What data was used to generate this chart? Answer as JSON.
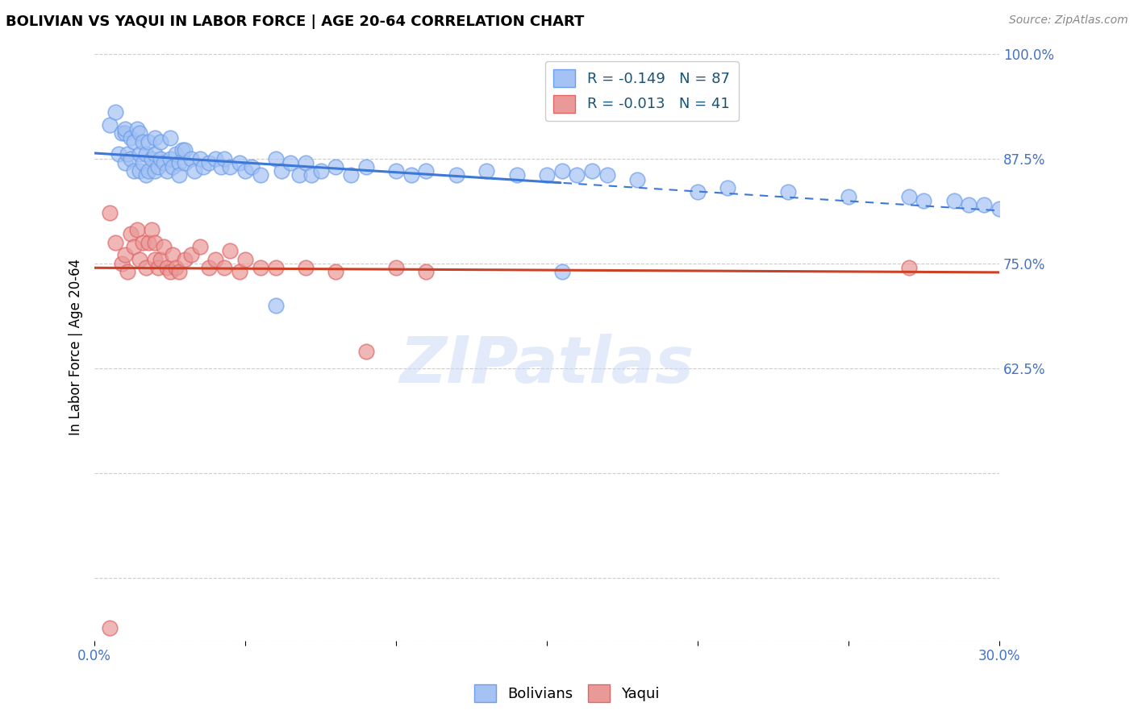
{
  "title": "BOLIVIAN VS YAQUI IN LABOR FORCE | AGE 20-64 CORRELATION CHART",
  "source": "Source: ZipAtlas.com",
  "ylabel_text": "In Labor Force | Age 20-64",
  "xlim": [
    0.0,
    0.3
  ],
  "ylim": [
    0.3,
    1.0
  ],
  "bolivian_R": -0.149,
  "bolivian_N": 87,
  "yaqui_R": -0.013,
  "yaqui_N": 41,
  "blue_color": "#a4c2f4",
  "blue_edge": "#6d9eeb",
  "pink_color": "#ea9999",
  "pink_edge": "#e06666",
  "blue_line_color": "#3c78d8",
  "pink_line_color": "#cc4125",
  "watermark": "ZIPatlas",
  "bolivians_label": "Bolivians",
  "yaqui_label": "Yaqui",
  "blue_x": [
    0.005,
    0.007,
    0.008,
    0.009,
    0.01,
    0.01,
    0.01,
    0.011,
    0.012,
    0.012,
    0.013,
    0.013,
    0.014,
    0.015,
    0.015,
    0.015,
    0.016,
    0.016,
    0.017,
    0.017,
    0.018,
    0.018,
    0.019,
    0.02,
    0.02,
    0.02,
    0.021,
    0.022,
    0.022,
    0.023,
    0.024,
    0.025,
    0.025,
    0.026,
    0.027,
    0.028,
    0.028,
    0.029,
    0.03,
    0.03,
    0.032,
    0.033,
    0.035,
    0.036,
    0.038,
    0.04,
    0.042,
    0.043,
    0.045,
    0.048,
    0.05,
    0.052,
    0.055,
    0.06,
    0.062,
    0.065,
    0.068,
    0.07,
    0.072,
    0.075,
    0.08,
    0.085,
    0.09,
    0.1,
    0.105,
    0.11,
    0.12,
    0.13,
    0.14,
    0.15,
    0.155,
    0.16,
    0.165,
    0.17,
    0.18,
    0.2,
    0.21,
    0.23,
    0.25,
    0.27,
    0.275,
    0.285,
    0.29,
    0.295,
    0.3,
    0.06,
    0.155
  ],
  "blue_y": [
    0.915,
    0.93,
    0.88,
    0.905,
    0.87,
    0.905,
    0.91,
    0.88,
    0.875,
    0.9,
    0.86,
    0.895,
    0.91,
    0.86,
    0.88,
    0.905,
    0.87,
    0.895,
    0.855,
    0.88,
    0.86,
    0.895,
    0.875,
    0.86,
    0.88,
    0.9,
    0.865,
    0.875,
    0.895,
    0.87,
    0.86,
    0.875,
    0.9,
    0.865,
    0.88,
    0.87,
    0.855,
    0.885,
    0.87,
    0.885,
    0.875,
    0.86,
    0.875,
    0.865,
    0.87,
    0.875,
    0.865,
    0.875,
    0.865,
    0.87,
    0.86,
    0.865,
    0.855,
    0.875,
    0.86,
    0.87,
    0.855,
    0.87,
    0.855,
    0.86,
    0.865,
    0.855,
    0.865,
    0.86,
    0.855,
    0.86,
    0.855,
    0.86,
    0.855,
    0.855,
    0.86,
    0.855,
    0.86,
    0.855,
    0.85,
    0.835,
    0.84,
    0.835,
    0.83,
    0.83,
    0.825,
    0.825,
    0.82,
    0.82,
    0.815,
    0.7,
    0.74
  ],
  "pink_x": [
    0.005,
    0.007,
    0.009,
    0.01,
    0.011,
    0.012,
    0.013,
    0.014,
    0.015,
    0.016,
    0.017,
    0.018,
    0.019,
    0.02,
    0.02,
    0.021,
    0.022,
    0.023,
    0.024,
    0.025,
    0.026,
    0.027,
    0.028,
    0.03,
    0.032,
    0.035,
    0.038,
    0.04,
    0.043,
    0.045,
    0.048,
    0.05,
    0.055,
    0.06,
    0.07,
    0.08,
    0.09,
    0.1,
    0.11,
    0.27,
    0.005
  ],
  "pink_y": [
    0.81,
    0.775,
    0.75,
    0.76,
    0.74,
    0.785,
    0.77,
    0.79,
    0.755,
    0.775,
    0.745,
    0.775,
    0.79,
    0.755,
    0.775,
    0.745,
    0.755,
    0.77,
    0.745,
    0.74,
    0.76,
    0.745,
    0.74,
    0.755,
    0.76,
    0.77,
    0.745,
    0.755,
    0.745,
    0.765,
    0.74,
    0.755,
    0.745,
    0.745,
    0.745,
    0.74,
    0.645,
    0.745,
    0.74,
    0.745,
    0.315
  ],
  "ytick_vals": [
    0.3,
    0.375,
    0.5,
    0.625,
    0.75,
    0.875,
    1.0
  ],
  "ytick_labels": [
    "",
    "",
    "",
    "62.5%",
    "75.0%",
    "87.5%",
    "100.0%"
  ],
  "xtick_vals": [
    0.0,
    0.05,
    0.1,
    0.15,
    0.2,
    0.25,
    0.3
  ],
  "xtick_labels": [
    "0.0%",
    "",
    "",
    "",
    "",
    "",
    "30.0%"
  ],
  "tick_color": "#4472c4",
  "grid_color": "#cccccc"
}
